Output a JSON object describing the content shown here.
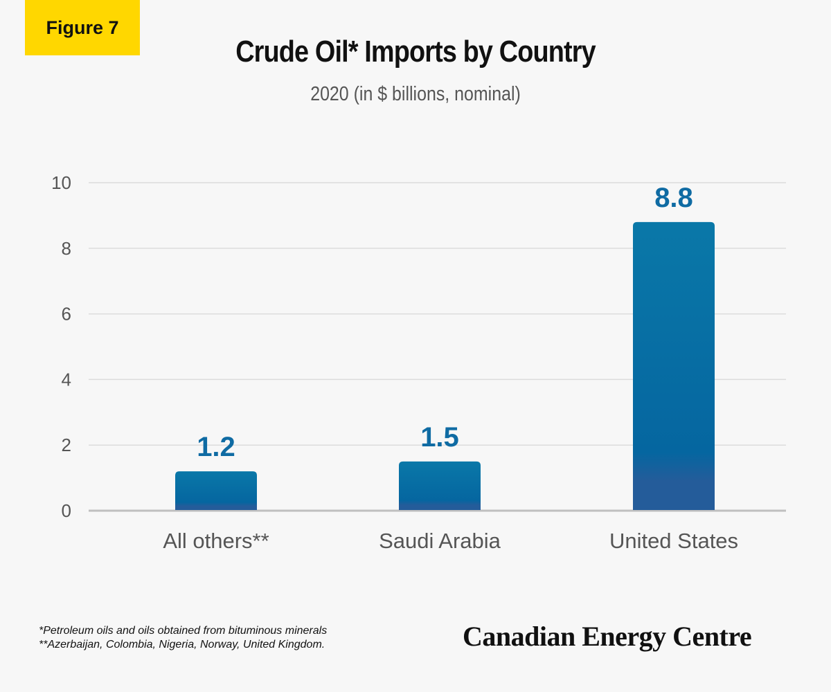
{
  "badge": "Figure 7",
  "title": "Crude Oil* Imports by Country",
  "subtitle": "2020 (in $ billions, nominal)",
  "footnotes": [
    "*Petroleum oils and oils obtained from bituminous minerals",
    "**Azerbaijan, Colombia, Nigeria, Norway, United Kingdom."
  ],
  "brand": "Canadian Energy Centre",
  "colors": {
    "badge": "#ffd700",
    "bar_top": "#0a78a8",
    "bar_bottom": "#245c9a",
    "data_label": "#0f6ba3"
  },
  "chart_data": {
    "type": "bar",
    "title": "Crude Oil* Imports by Country",
    "subtitle": "2020 (in $ billions, nominal)",
    "categories": [
      "All others**",
      "Saudi Arabia",
      "United States"
    ],
    "values": [
      1.2,
      1.5,
      8.8
    ],
    "data_labels": [
      "1.2",
      "1.5",
      "8.8"
    ],
    "ylim": [
      0,
      10
    ],
    "yticks": [
      0,
      2,
      4,
      6,
      8,
      10
    ],
    "grid": true,
    "legend": "none"
  }
}
